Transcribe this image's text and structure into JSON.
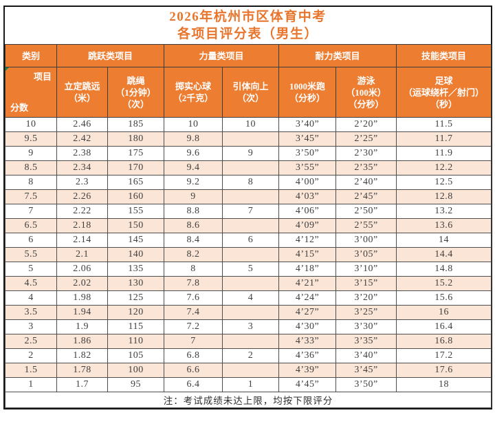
{
  "title": {
    "line1": "2026年杭州市区体育中考",
    "line2": "各项目评分表（男生）"
  },
  "header": {
    "category_label": "类别",
    "categories": [
      {
        "label": "跳跃类项目"
      },
      {
        "label": "力量类项目"
      },
      {
        "label": "耐力类项目"
      },
      {
        "label": "技能类项目"
      }
    ],
    "diagonal": {
      "top": "项目",
      "bottom": "分数"
    },
    "columns": [
      "立定跳远\n（米）",
      "跳绳\n（1分钟）\n（次）",
      "掷实心球\n（2千克）",
      "引体向上\n（次）",
      "1000米跑\n（分秒）",
      "游泳\n（100米）\n（分秒）",
      "足球\n（运球绕杆／射门）\n（秒）"
    ]
  },
  "table": {
    "rows": [
      [
        "10",
        "2.46",
        "185",
        "10",
        "10",
        "3’40”",
        "2’20”",
        "11.5"
      ],
      [
        "9.5",
        "2.42",
        "180",
        "9.8",
        "",
        "3’45”",
        "2’25”",
        "11.7"
      ],
      [
        "9",
        "2.38",
        "175",
        "9.6",
        "9",
        "3’50”",
        "2’30”",
        "11.9"
      ],
      [
        "8.5",
        "2.34",
        "170",
        "9.4",
        "",
        "3’55”",
        "2’35”",
        "12.2"
      ],
      [
        "8",
        "2.3",
        "165",
        "9.2",
        "8",
        "4’00”",
        "2’40”",
        "12.5"
      ],
      [
        "7.5",
        "2.26",
        "160",
        "9",
        "",
        "4’03”",
        "2’45”",
        "12.8"
      ],
      [
        "7",
        "2.22",
        "155",
        "8.8",
        "7",
        "4’06”",
        "2’50”",
        "13.2"
      ],
      [
        "6.5",
        "2.18",
        "150",
        "8.6",
        "",
        "4’09”",
        "2’55”",
        "13.6"
      ],
      [
        "6",
        "2.14",
        "145",
        "8.4",
        "6",
        "4’12”",
        "3’00”",
        "14"
      ],
      [
        "5.5",
        "2.1",
        "140",
        "8.2",
        "",
        "4’15”",
        "3’05”",
        "14.4"
      ],
      [
        "5",
        "2.06",
        "135",
        "8",
        "5",
        "4’18”",
        "3’10”",
        "14.8"
      ],
      [
        "4.5",
        "2.02",
        "130",
        "7.8",
        "",
        "4’21”",
        "3’15”",
        "15.2"
      ],
      [
        "4",
        "1.98",
        "125",
        "7.6",
        "4",
        "4’24”",
        "3’20”",
        "15.6"
      ],
      [
        "3.5",
        "1.94",
        "120",
        "7.4",
        "",
        "4’27”",
        "3’25”",
        "16"
      ],
      [
        "3",
        "1.9",
        "115",
        "7.2",
        "3",
        "4’30”",
        "3’30”",
        "16.4"
      ],
      [
        "2.5",
        "1.86",
        "110",
        "7",
        "",
        "4’33”",
        "3’35”",
        "16.8"
      ],
      [
        "2",
        "1.82",
        "105",
        "6.8",
        "2",
        "4’36”",
        "3’40”",
        "17.2"
      ],
      [
        "1.5",
        "1.78",
        "100",
        "6.6",
        "",
        "4’39”",
        "3’45”",
        "17.6"
      ],
      [
        "1",
        "1.7",
        "95",
        "6.4",
        "1",
        "4’45”",
        "3’50”",
        "18"
      ]
    ]
  },
  "footer": {
    "note": "注：考试成绩未达上限，均按下限评分"
  },
  "colors": {
    "header_bg": "#ED7D31",
    "header_text": "#FFFFFF",
    "alt_row_bg": "#FBE5D6",
    "title_text": "#E8752C"
  }
}
